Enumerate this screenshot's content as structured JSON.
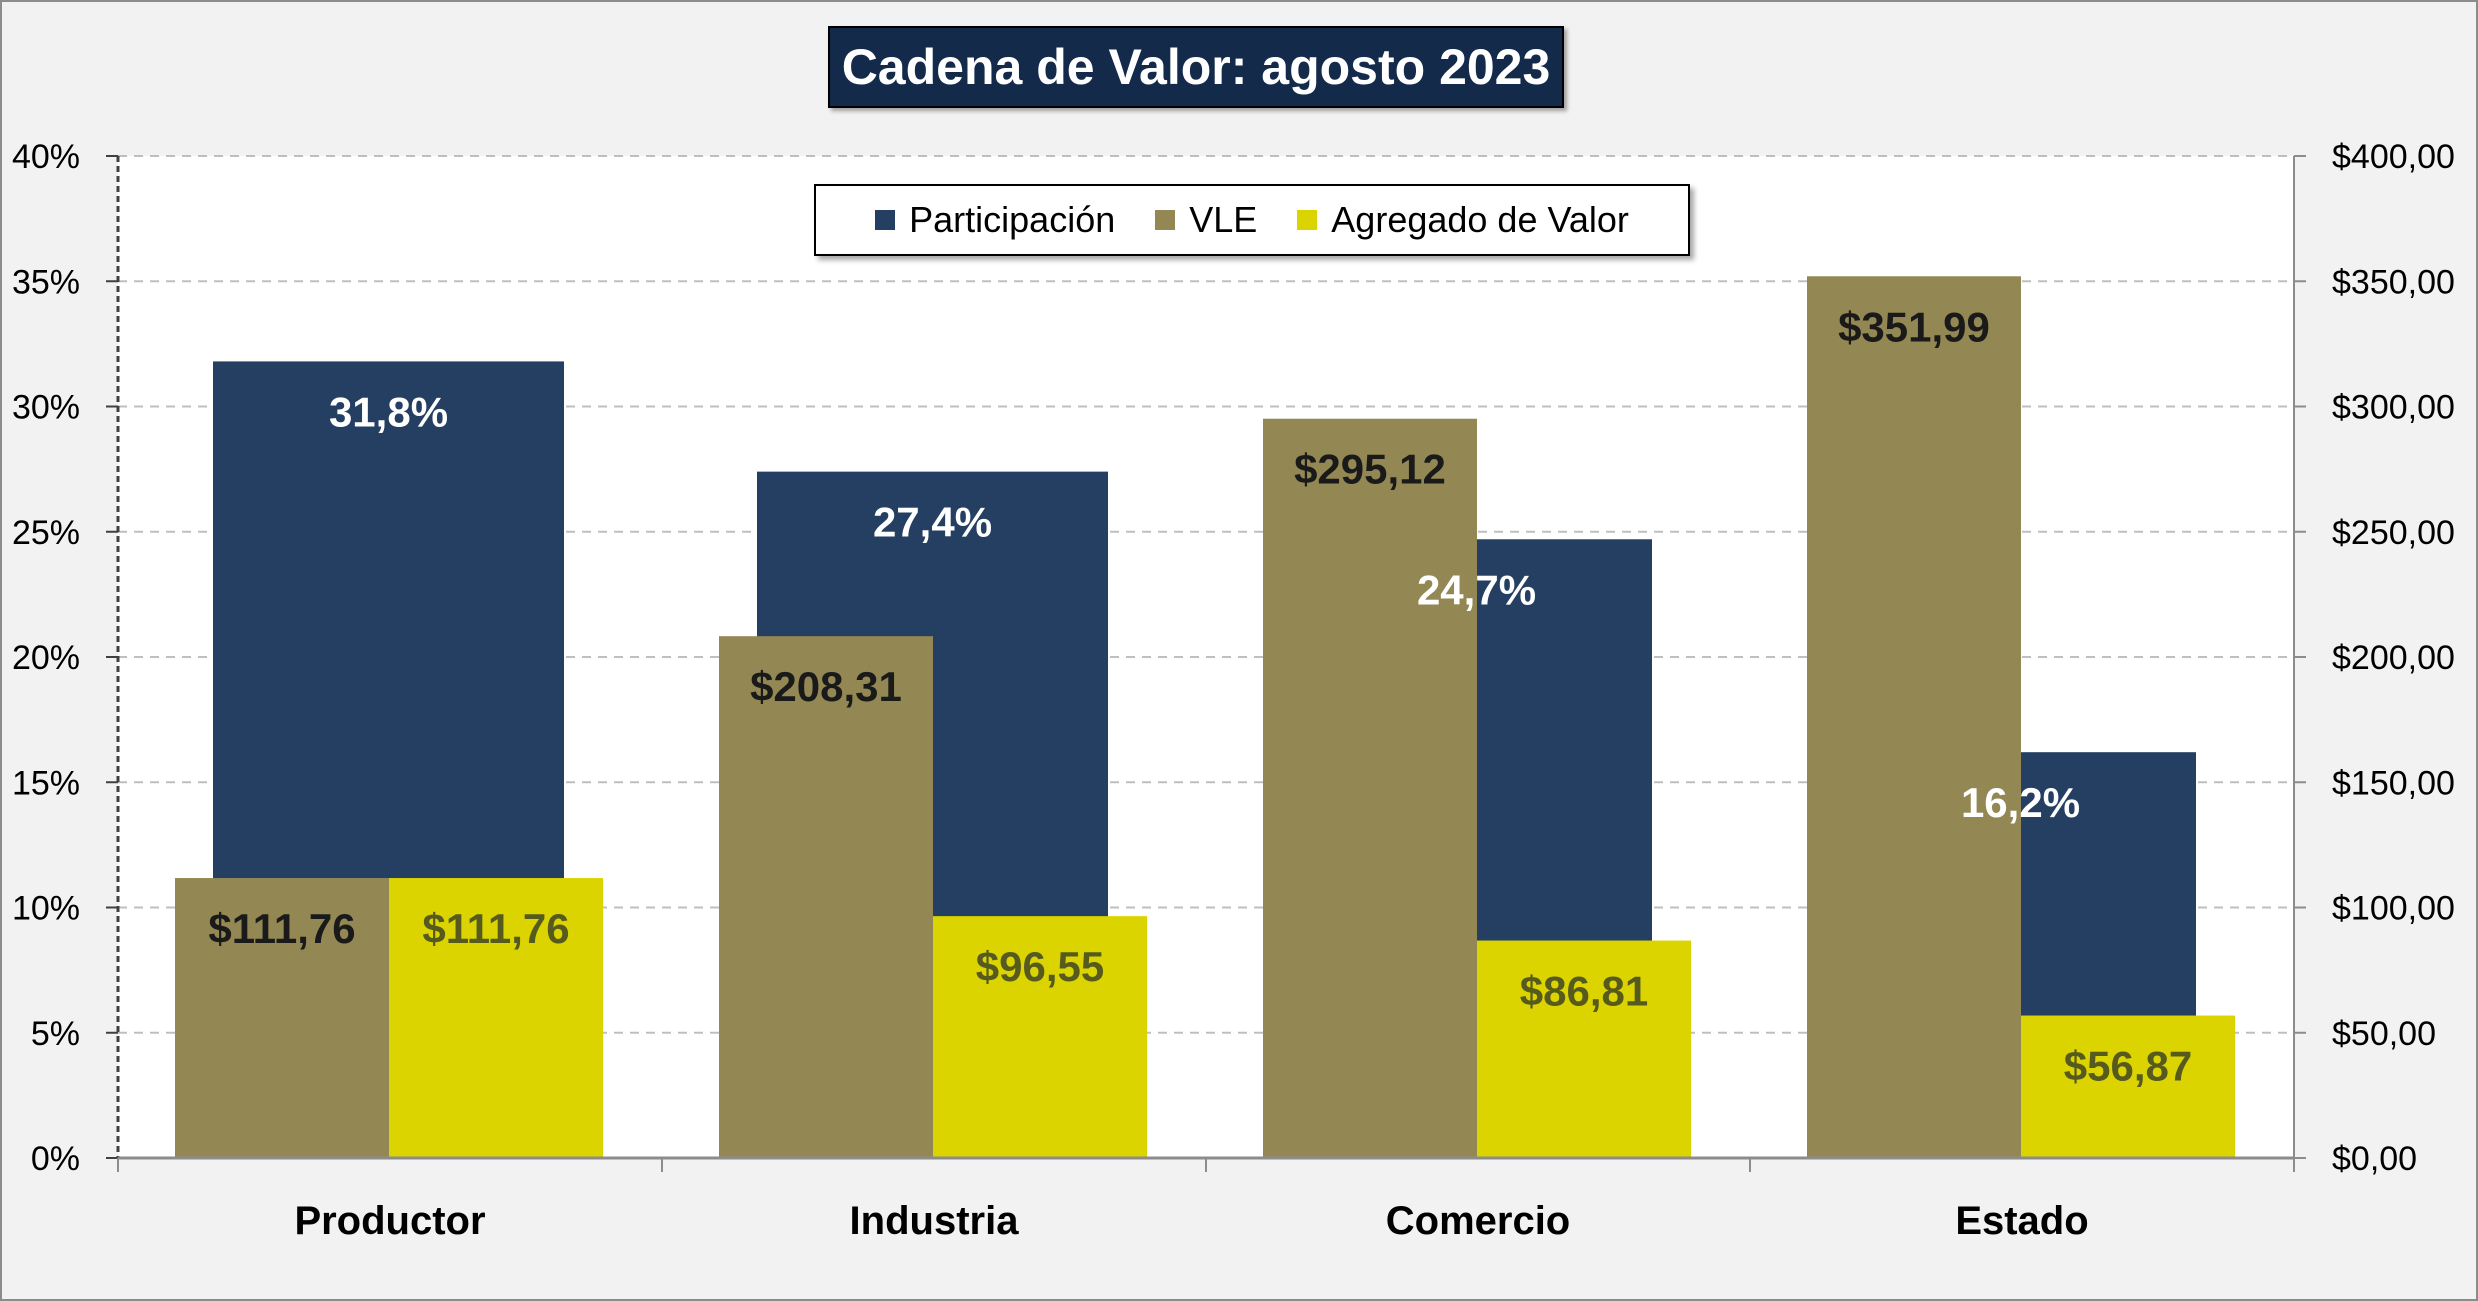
{
  "chart_data": {
    "type": "bar",
    "title": "Cadena de Valor: agosto 2023",
    "categories": [
      "Productor",
      "Industria",
      "Comercio",
      "Estado"
    ],
    "series": [
      {
        "name": "Participación",
        "axis": "left",
        "values": [
          31.8,
          27.4,
          24.7,
          16.2
        ],
        "labels": [
          "31,8%",
          "27,4%",
          "24,7%",
          "16,2%"
        ],
        "color": "#243f62",
        "label_color": "#ffffff"
      },
      {
        "name": "VLE",
        "axis": "right",
        "values": [
          111.76,
          208.31,
          295.12,
          351.99
        ],
        "labels": [
          "$111,76",
          "$208,31",
          "$295,12",
          "$351,99"
        ],
        "color": "#938853",
        "label_color": "#1a1a1a"
      },
      {
        "name": "Agregado de Valor",
        "axis": "right",
        "values": [
          111.76,
          96.55,
          86.81,
          56.87
        ],
        "labels": [
          "$111,76",
          "$96,55",
          "$86,81",
          "$56,87"
        ],
        "color": "#dcd400",
        "label_color": "#565a1c"
      }
    ],
    "y_left": {
      "min": 0,
      "max": 40,
      "ticks": [
        "0%",
        "5%",
        "10%",
        "15%",
        "20%",
        "25%",
        "30%",
        "35%",
        "40%"
      ]
    },
    "y_right": {
      "min": 0,
      "max": 400,
      "ticks": [
        "$0,00",
        "$50,00",
        "$100,00",
        "$150,00",
        "$200,00",
        "$250,00",
        "$300,00",
        "$350,00",
        "$400,00"
      ]
    },
    "grid": true,
    "legend_position": "top"
  },
  "colors": {
    "background": "#f2f2f2",
    "plot_background": "#ffffff",
    "title_background": "#142a4a",
    "gridline": "#bfbfbf"
  }
}
